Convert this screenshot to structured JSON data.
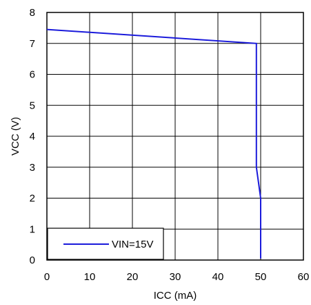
{
  "chart_data": {
    "type": "line",
    "xlabel": "ICC (mA)",
    "ylabel": "VCC (V)",
    "xlim": [
      0,
      60
    ],
    "ylim": [
      0,
      8
    ],
    "xticks": [
      0,
      10,
      20,
      30,
      40,
      50,
      60
    ],
    "yticks": [
      0,
      1,
      2,
      3,
      4,
      5,
      6,
      7,
      8
    ],
    "xtick_labels": [
      "0",
      "10",
      "20",
      "30",
      "40",
      "50",
      "60"
    ],
    "ytick_labels": [
      "0",
      "1",
      "2",
      "3",
      "4",
      "5",
      "6",
      "7",
      "8"
    ],
    "grid": true,
    "legend_position": "bottom-left",
    "series": [
      {
        "name": "VIN=15V",
        "color": "#1a1adb",
        "x": [
          0,
          49,
          49,
          50,
          50
        ],
        "y": [
          7.45,
          7.0,
          3.0,
          2.0,
          0.05
        ]
      }
    ]
  }
}
